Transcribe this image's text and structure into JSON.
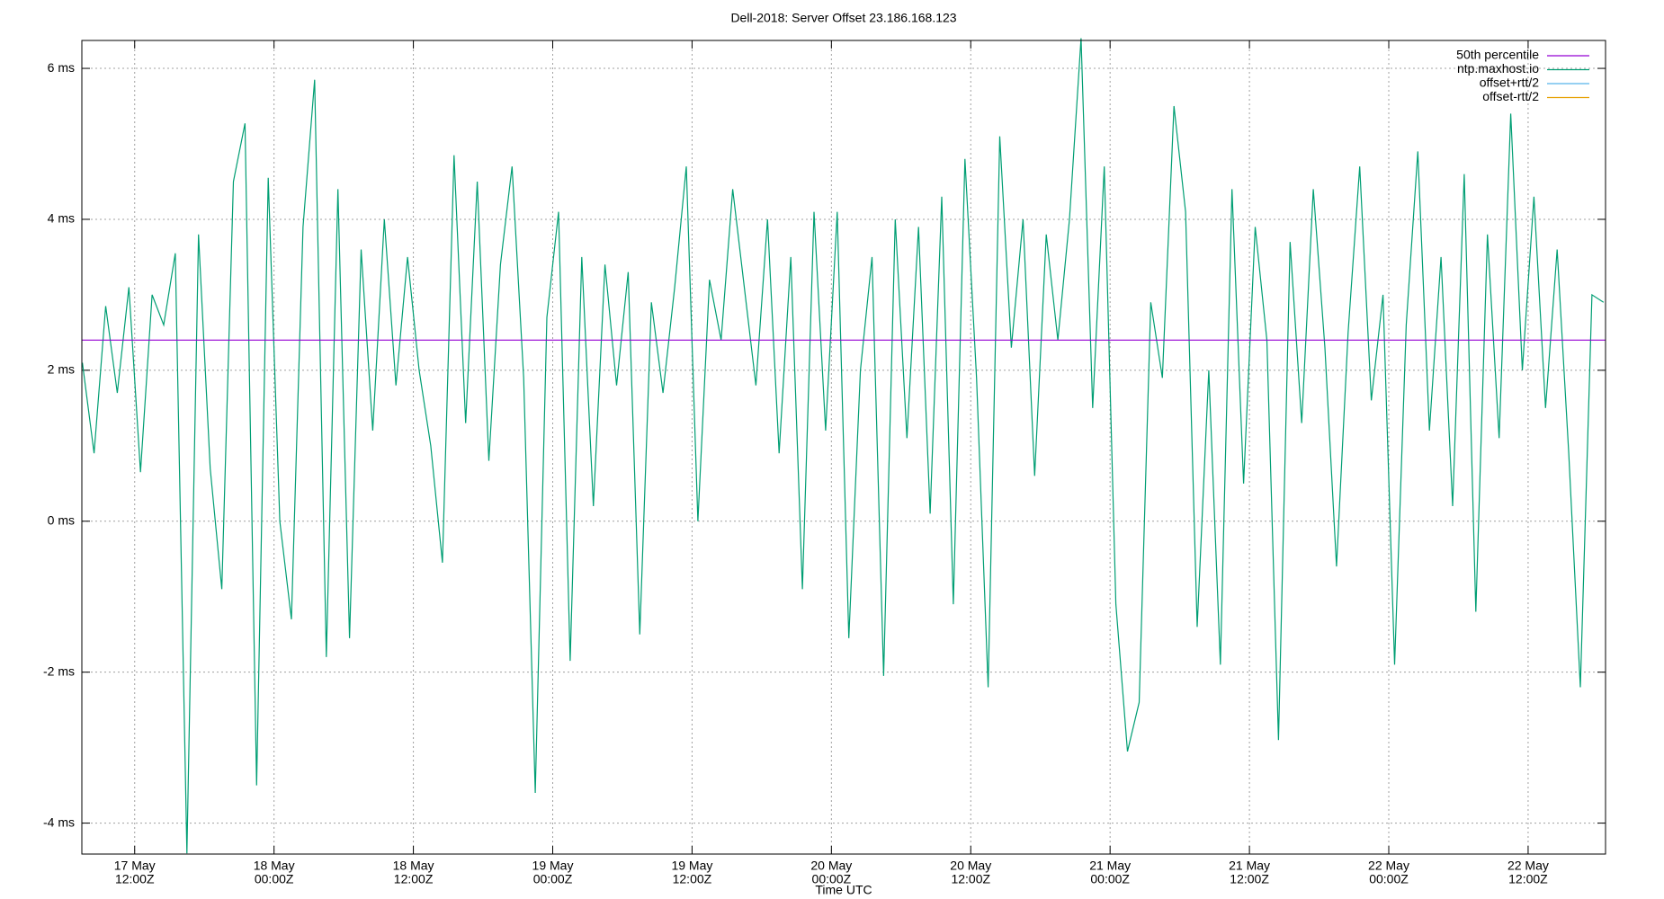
{
  "chart_data": {
    "type": "line",
    "title": "Dell-2018: Server Offset 23.186.168.123",
    "x_label": "Time UTC",
    "ylim": [
      -4.41,
      6.37
    ],
    "yticks": [
      {
        "value": -4,
        "label": "-4 ms"
      },
      {
        "value": -2,
        "label": "-2 ms"
      },
      {
        "value": 0,
        "label": "0 ms"
      },
      {
        "value": 2,
        "label": "2 ms"
      },
      {
        "value": 4,
        "label": "4 ms"
      },
      {
        "value": 6,
        "label": "6 ms"
      }
    ],
    "xlim": [
      "17 May 07:27",
      "22 May 18:40"
    ],
    "xticks": [
      {
        "value": "17 May 12:00",
        "label": [
          "17 May",
          "12:00Z"
        ]
      },
      {
        "value": "18 May 00:00",
        "label": [
          "18 May",
          "00:00Z"
        ]
      },
      {
        "value": "18 May 12:00",
        "label": [
          "18 May",
          "12:00Z"
        ]
      },
      {
        "value": "19 May 00:00",
        "label": [
          "19 May",
          "00:00Z"
        ]
      },
      {
        "value": "19 May 12:00",
        "label": [
          "19 May",
          "12:00Z"
        ]
      },
      {
        "value": "20 May 00:00",
        "label": [
          "20 May",
          "00:00Z"
        ]
      },
      {
        "value": "20 May 12:00",
        "label": [
          "20 May",
          "12:00Z"
        ]
      },
      {
        "value": "21 May 00:00",
        "label": [
          "21 May",
          "00:00Z"
        ]
      },
      {
        "value": "21 May 12:00",
        "label": [
          "21 May",
          "12:00Z"
        ]
      },
      {
        "value": "22 May 00:00",
        "label": [
          "22 May",
          "00:00Z"
        ]
      },
      {
        "value": "22 May 12:00",
        "label": [
          "22 May",
          "12:00Z"
        ]
      }
    ],
    "grid": true,
    "legend": "upper right",
    "x": [
      "17 May 07:30",
      "17 May 08:30",
      "17 May 09:30",
      "17 May 10:30",
      "17 May 11:30",
      "17 May 12:30",
      "17 May 13:30",
      "17 May 14:30",
      "17 May 15:30",
      "17 May 16:30",
      "17 May 17:30",
      "17 May 18:30",
      "17 May 19:30",
      "17 May 20:30",
      "17 May 21:30",
      "17 May 22:30",
      "17 May 23:30",
      "18 May 00:30",
      "18 May 01:30",
      "18 May 02:30",
      "18 May 03:30",
      "18 May 04:30",
      "18 May 05:30",
      "18 May 06:30",
      "18 May 07:30",
      "18 May 08:30",
      "18 May 09:30",
      "18 May 10:30",
      "18 May 11:30",
      "18 May 12:30",
      "18 May 13:30",
      "18 May 14:30",
      "18 May 15:30",
      "18 May 16:30",
      "18 May 17:30",
      "18 May 18:30",
      "18 May 19:30",
      "18 May 20:30",
      "18 May 21:30",
      "18 May 22:30",
      "18 May 23:30",
      "19 May 00:30",
      "19 May 01:30",
      "19 May 02:30",
      "19 May 03:30",
      "19 May 04:30",
      "19 May 05:30",
      "19 May 06:30",
      "19 May 07:30",
      "19 May 08:30",
      "19 May 09:30",
      "19 May 10:30",
      "19 May 11:30",
      "19 May 12:30",
      "19 May 13:30",
      "19 May 14:30",
      "19 May 15:30",
      "19 May 16:30",
      "19 May 17:30",
      "19 May 18:30",
      "19 May 19:30",
      "19 May 20:30",
      "19 May 21:30",
      "19 May 22:30",
      "19 May 23:30",
      "20 May 00:30",
      "20 May 01:30",
      "20 May 02:30",
      "20 May 03:30",
      "20 May 04:30",
      "20 May 05:30",
      "20 May 06:30",
      "20 May 07:30",
      "20 May 08:30",
      "20 May 09:30",
      "20 May 10:30",
      "20 May 11:30",
      "20 May 12:30",
      "20 May 13:30",
      "20 May 14:30",
      "20 May 15:30",
      "20 May 16:30",
      "20 May 17:30",
      "20 May 18:30",
      "20 May 19:30",
      "20 May 20:30",
      "20 May 21:30",
      "20 May 22:30",
      "20 May 23:30",
      "21 May 00:30",
      "21 May 01:30",
      "21 May 02:30",
      "21 May 03:30",
      "21 May 04:30",
      "21 May 05:30",
      "21 May 06:30",
      "21 May 07:30",
      "21 May 08:30",
      "21 May 09:30",
      "21 May 10:30",
      "21 May 11:30",
      "21 May 12:30",
      "21 May 13:30",
      "21 May 14:30",
      "21 May 15:30",
      "21 May 16:30",
      "21 May 17:30",
      "21 May 18:30",
      "21 May 19:30",
      "21 May 20:30",
      "21 May 21:30",
      "21 May 22:30",
      "21 May 23:30",
      "22 May 00:30",
      "22 May 01:30",
      "22 May 02:30",
      "22 May 03:30",
      "22 May 04:30",
      "22 May 05:30",
      "22 May 06:30",
      "22 May 07:30",
      "22 May 08:30",
      "22 May 09:30",
      "22 May 10:30",
      "22 May 11:30",
      "22 May 12:30",
      "22 May 13:30",
      "22 May 14:30",
      "22 May 15:30",
      "22 May 16:30",
      "22 May 17:30",
      "22 May 18:30"
    ],
    "percentile": {
      "name": "50th percentile",
      "color": "#9400d3",
      "value": 2.4
    },
    "series": [
      {
        "name": "ntp.maxhost.io",
        "color": "#009e73",
        "values": [
          2.1,
          0.9,
          2.85,
          1.7,
          3.1,
          0.65,
          3.0,
          2.6,
          3.55,
          -4.4,
          3.8,
          0.7,
          -0.9,
          4.5,
          5.27,
          -3.5,
          4.55,
          0.0,
          -1.3,
          3.9,
          5.85,
          -1.8,
          4.4,
          -1.55,
          3.6,
          1.2,
          4.0,
          1.8,
          3.5,
          2.0,
          1.0,
          -0.55,
          4.85,
          1.3,
          4.5,
          0.8,
          3.4,
          4.7,
          1.9,
          -3.6,
          2.7,
          4.1,
          -1.85,
          3.5,
          0.2,
          3.4,
          1.8,
          3.3,
          -1.5,
          2.9,
          1.7,
          3.1,
          4.7,
          0.0,
          3.2,
          2.4,
          4.4,
          3.1,
          1.8,
          4.0,
          0.9,
          3.5,
          -0.9,
          4.1,
          1.2,
          4.1,
          -1.55,
          2.0,
          3.5,
          -2.05,
          4.0,
          1.1,
          3.9,
          0.1,
          4.3,
          -1.1,
          4.8,
          1.9,
          -2.2,
          5.1,
          2.3,
          4.0,
          0.6,
          3.8,
          2.4,
          4.0,
          6.4,
          1.5,
          4.7,
          -1.1,
          -3.05,
          -2.4,
          2.9,
          1.9,
          5.5,
          4.1,
          -1.4,
          2.0,
          -1.9,
          4.4,
          0.5,
          3.9,
          2.4,
          -2.9,
          3.7,
          1.3,
          4.4,
          2.3,
          -0.6,
          2.5,
          4.7,
          1.6,
          3.0,
          -1.9,
          2.6,
          4.9,
          1.2,
          3.5,
          0.2,
          4.6,
          -1.2,
          3.8,
          1.1,
          5.4,
          2.0,
          4.3,
          1.5,
          3.6,
          0.9,
          -2.2,
          3.0,
          2.9
        ]
      },
      {
        "name": "offset+rtt/2",
        "color": "#56b4e9"
      },
      {
        "name": "offset-rtt/2",
        "color": "#e69f00"
      }
    ]
  }
}
